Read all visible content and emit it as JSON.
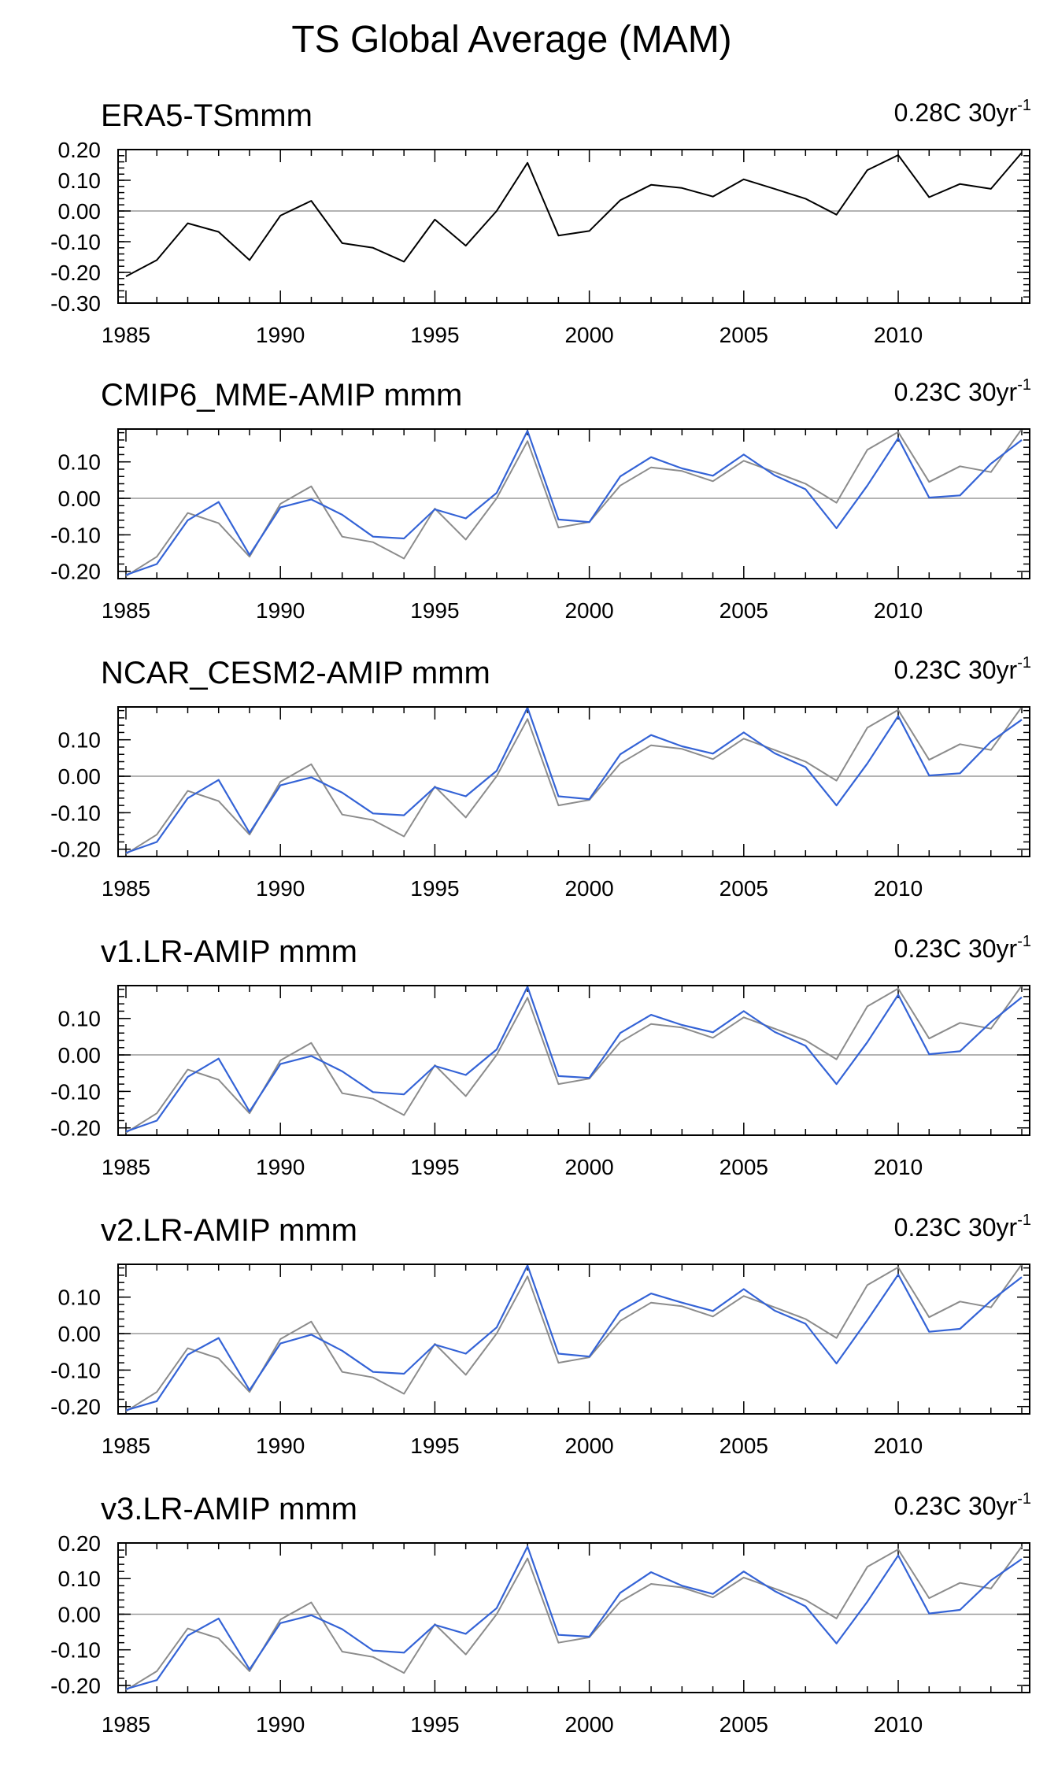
{
  "title": "TS Global Average (MAM)",
  "colors": {
    "observed": "#000000",
    "observed_reference": "#8c8c8c",
    "model": "#3463d6",
    "zero_line": "#9a9a9a"
  },
  "chart_data": [
    {
      "type": "line",
      "title": "ERA5-TSmmm",
      "trend_label": "0.28C 30yr",
      "trend_superscript": "-1",
      "xlabel": "",
      "ylabel": "",
      "xlim": [
        1985,
        2014
      ],
      "ylim": [
        -0.3,
        0.2
      ],
      "y_ticks": [
        0.2,
        0.1,
        0.0,
        -0.1,
        -0.2,
        -0.3
      ],
      "y_tick_labels": [
        "0.20",
        "0.10",
        "0.00",
        "-0.10",
        "-0.20",
        "-0.30"
      ],
      "x_ticks": [
        1985,
        1990,
        1995,
        2000,
        2005,
        2010
      ],
      "x_tick_labels": [
        "1985",
        "1990",
        "1995",
        "2000",
        "2005",
        "2010"
      ],
      "series": [
        {
          "name": "ERA5",
          "role": "observed",
          "x": [
            1985,
            1986,
            1987,
            1988,
            1989,
            1990,
            1991,
            1992,
            1993,
            1994,
            1995,
            1996,
            1997,
            1998,
            1999,
            2000,
            2001,
            2002,
            2003,
            2004,
            2005,
            2006,
            2007,
            2008,
            2009,
            2010,
            2011,
            2012,
            2013,
            2014
          ],
          "values": [
            -0.213,
            -0.16,
            -0.04,
            -0.068,
            -0.16,
            -0.015,
            0.033,
            -0.105,
            -0.12,
            -0.165,
            -0.028,
            -0.113,
            0.0,
            0.157,
            -0.08,
            -0.065,
            0.035,
            0.085,
            0.075,
            0.047,
            0.103,
            0.072,
            0.04,
            -0.012,
            0.133,
            0.182,
            0.045,
            0.088,
            0.072,
            0.19
          ]
        }
      ]
    },
    {
      "type": "line",
      "title": "CMIP6_MME-AMIP  mmm",
      "trend_label": "0.23C 30yr",
      "trend_superscript": "-1",
      "xlabel": "",
      "ylabel": "",
      "xlim": [
        1985,
        2014
      ],
      "ylim": [
        -0.22,
        0.19
      ],
      "y_ticks": [
        0.1,
        0.0,
        -0.1,
        -0.2
      ],
      "y_tick_labels": [
        "0.10",
        "0.00",
        "-0.10",
        "-0.20"
      ],
      "x_ticks": [
        1985,
        1990,
        1995,
        2000,
        2005,
        2010
      ],
      "x_tick_labels": [
        "1985",
        "1990",
        "1995",
        "2000",
        "2005",
        "2010"
      ],
      "series": [
        {
          "name": "ERA5",
          "role": "observed_reference",
          "x": [
            1985,
            1986,
            1987,
            1988,
            1989,
            1990,
            1991,
            1992,
            1993,
            1994,
            1995,
            1996,
            1997,
            1998,
            1999,
            2000,
            2001,
            2002,
            2003,
            2004,
            2005,
            2006,
            2007,
            2008,
            2009,
            2010,
            2011,
            2012,
            2013,
            2014
          ],
          "values": [
            -0.213,
            -0.16,
            -0.04,
            -0.068,
            -0.16,
            -0.015,
            0.033,
            -0.105,
            -0.12,
            -0.165,
            -0.028,
            -0.113,
            0.0,
            0.157,
            -0.08,
            -0.065,
            0.035,
            0.085,
            0.075,
            0.047,
            0.103,
            0.072,
            0.04,
            -0.012,
            0.133,
            0.182,
            0.045,
            0.088,
            0.072,
            0.19
          ]
        },
        {
          "name": "CMIP6_MME-AMIP",
          "role": "model",
          "x": [
            1985,
            1986,
            1987,
            1988,
            1989,
            1990,
            1991,
            1992,
            1993,
            1994,
            1995,
            1996,
            1997,
            1998,
            1999,
            2000,
            2001,
            2002,
            2003,
            2004,
            2005,
            2006,
            2007,
            2008,
            2009,
            2010,
            2011,
            2012,
            2013,
            2014
          ],
          "values": [
            -0.21,
            -0.18,
            -0.06,
            -0.01,
            -0.155,
            -0.025,
            -0.003,
            -0.045,
            -0.105,
            -0.11,
            -0.03,
            -0.055,
            0.015,
            0.185,
            -0.058,
            -0.065,
            0.06,
            0.113,
            0.082,
            0.062,
            0.12,
            0.063,
            0.025,
            -0.082,
            0.035,
            0.165,
            0.002,
            0.008,
            0.095,
            0.16
          ]
        }
      ]
    },
    {
      "type": "line",
      "title": "NCAR_CESM2-AMIP  mmm",
      "trend_label": "0.23C 30yr",
      "trend_superscript": "-1",
      "xlabel": "",
      "ylabel": "",
      "xlim": [
        1985,
        2014
      ],
      "ylim": [
        -0.22,
        0.19
      ],
      "y_ticks": [
        0.1,
        0.0,
        -0.1,
        -0.2
      ],
      "y_tick_labels": [
        "0.10",
        "0.00",
        "-0.10",
        "-0.20"
      ],
      "x_ticks": [
        1985,
        1990,
        1995,
        2000,
        2005,
        2010
      ],
      "x_tick_labels": [
        "1985",
        "1990",
        "1995",
        "2000",
        "2005",
        "2010"
      ],
      "series": [
        {
          "name": "ERA5",
          "role": "observed_reference",
          "x": [
            1985,
            1986,
            1987,
            1988,
            1989,
            1990,
            1991,
            1992,
            1993,
            1994,
            1995,
            1996,
            1997,
            1998,
            1999,
            2000,
            2001,
            2002,
            2003,
            2004,
            2005,
            2006,
            2007,
            2008,
            2009,
            2010,
            2011,
            2012,
            2013,
            2014
          ],
          "values": [
            -0.213,
            -0.16,
            -0.04,
            -0.068,
            -0.16,
            -0.015,
            0.033,
            -0.105,
            -0.12,
            -0.165,
            -0.028,
            -0.113,
            0.0,
            0.157,
            -0.08,
            -0.065,
            0.035,
            0.085,
            0.075,
            0.047,
            0.103,
            0.072,
            0.04,
            -0.012,
            0.133,
            0.182,
            0.045,
            0.088,
            0.072,
            0.19
          ]
        },
        {
          "name": "NCAR_CESM2-AMIP",
          "role": "model",
          "x": [
            1985,
            1986,
            1987,
            1988,
            1989,
            1990,
            1991,
            1992,
            1993,
            1994,
            1995,
            1996,
            1997,
            1998,
            1999,
            2000,
            2001,
            2002,
            2003,
            2004,
            2005,
            2006,
            2007,
            2008,
            2009,
            2010,
            2011,
            2012,
            2013,
            2014
          ],
          "values": [
            -0.21,
            -0.18,
            -0.06,
            -0.01,
            -0.155,
            -0.025,
            -0.003,
            -0.045,
            -0.102,
            -0.107,
            -0.03,
            -0.055,
            0.015,
            0.188,
            -0.055,
            -0.063,
            0.06,
            0.113,
            0.082,
            0.062,
            0.12,
            0.063,
            0.025,
            -0.08,
            0.035,
            0.165,
            0.002,
            0.008,
            0.095,
            0.155
          ]
        }
      ]
    },
    {
      "type": "line",
      "title": "v1.LR-AMIP  mmm",
      "trend_label": "0.23C 30yr",
      "trend_superscript": "-1",
      "xlabel": "",
      "ylabel": "",
      "xlim": [
        1985,
        2014
      ],
      "ylim": [
        -0.22,
        0.19
      ],
      "y_ticks": [
        0.1,
        0.0,
        -0.1,
        -0.2
      ],
      "y_tick_labels": [
        "0.10",
        "0.00",
        "-0.10",
        "-0.20"
      ],
      "x_ticks": [
        1985,
        1990,
        1995,
        2000,
        2005,
        2010
      ],
      "x_tick_labels": [
        "1985",
        "1990",
        "1995",
        "2000",
        "2005",
        "2010"
      ],
      "series": [
        {
          "name": "ERA5",
          "role": "observed_reference",
          "x": [
            1985,
            1986,
            1987,
            1988,
            1989,
            1990,
            1991,
            1992,
            1993,
            1994,
            1995,
            1996,
            1997,
            1998,
            1999,
            2000,
            2001,
            2002,
            2003,
            2004,
            2005,
            2006,
            2007,
            2008,
            2009,
            2010,
            2011,
            2012,
            2013,
            2014
          ],
          "values": [
            -0.213,
            -0.16,
            -0.04,
            -0.068,
            -0.16,
            -0.015,
            0.033,
            -0.105,
            -0.12,
            -0.165,
            -0.028,
            -0.113,
            0.0,
            0.157,
            -0.08,
            -0.065,
            0.035,
            0.085,
            0.075,
            0.047,
            0.103,
            0.072,
            0.04,
            -0.012,
            0.133,
            0.182,
            0.045,
            0.088,
            0.072,
            0.19
          ]
        },
        {
          "name": "v1.LR-AMIP",
          "role": "model",
          "x": [
            1985,
            1986,
            1987,
            1988,
            1989,
            1990,
            1991,
            1992,
            1993,
            1994,
            1995,
            1996,
            1997,
            1998,
            1999,
            2000,
            2001,
            2002,
            2003,
            2004,
            2005,
            2006,
            2007,
            2008,
            2009,
            2010,
            2011,
            2012,
            2013,
            2014
          ],
          "values": [
            -0.21,
            -0.18,
            -0.06,
            -0.01,
            -0.155,
            -0.025,
            -0.003,
            -0.045,
            -0.102,
            -0.108,
            -0.03,
            -0.055,
            0.015,
            0.187,
            -0.058,
            -0.063,
            0.06,
            0.11,
            0.082,
            0.062,
            0.12,
            0.063,
            0.025,
            -0.08,
            0.035,
            0.165,
            0.002,
            0.01,
            0.09,
            0.158
          ]
        }
      ]
    },
    {
      "type": "line",
      "title": "v2.LR-AMIP  mmm",
      "trend_label": "0.23C 30yr",
      "trend_superscript": "-1",
      "xlabel": "",
      "ylabel": "",
      "xlim": [
        1985,
        2014
      ],
      "ylim": [
        -0.22,
        0.19
      ],
      "y_ticks": [
        0.1,
        0.0,
        -0.1,
        -0.2
      ],
      "y_tick_labels": [
        "0.10",
        "0.00",
        "-0.10",
        "-0.20"
      ],
      "x_ticks": [
        1985,
        1990,
        1995,
        2000,
        2005,
        2010
      ],
      "x_tick_labels": [
        "1985",
        "1990",
        "1995",
        "2000",
        "2005",
        "2010"
      ],
      "series": [
        {
          "name": "ERA5",
          "role": "observed_reference",
          "x": [
            1985,
            1986,
            1987,
            1988,
            1989,
            1990,
            1991,
            1992,
            1993,
            1994,
            1995,
            1996,
            1997,
            1998,
            1999,
            2000,
            2001,
            2002,
            2003,
            2004,
            2005,
            2006,
            2007,
            2008,
            2009,
            2010,
            2011,
            2012,
            2013,
            2014
          ],
          "values": [
            -0.213,
            -0.16,
            -0.04,
            -0.068,
            -0.16,
            -0.015,
            0.033,
            -0.105,
            -0.12,
            -0.165,
            -0.028,
            -0.113,
            0.0,
            0.157,
            -0.08,
            -0.065,
            0.035,
            0.085,
            0.075,
            0.047,
            0.103,
            0.072,
            0.04,
            -0.012,
            0.133,
            0.182,
            0.045,
            0.088,
            0.072,
            0.19
          ]
        },
        {
          "name": "v2.LR-AMIP",
          "role": "model",
          "x": [
            1985,
            1986,
            1987,
            1988,
            1989,
            1990,
            1991,
            1992,
            1993,
            1994,
            1995,
            1996,
            1997,
            1998,
            1999,
            2000,
            2001,
            2002,
            2003,
            2004,
            2005,
            2006,
            2007,
            2008,
            2009,
            2010,
            2011,
            2012,
            2013,
            2014
          ],
          "values": [
            -0.21,
            -0.185,
            -0.058,
            -0.012,
            -0.155,
            -0.027,
            -0.003,
            -0.047,
            -0.105,
            -0.11,
            -0.03,
            -0.055,
            0.017,
            0.187,
            -0.055,
            -0.063,
            0.062,
            0.11,
            0.085,
            0.062,
            0.122,
            0.063,
            0.027,
            -0.082,
            0.037,
            0.162,
            0.005,
            0.013,
            0.09,
            0.155
          ]
        }
      ]
    },
    {
      "type": "line",
      "title": "v3.LR-AMIP  mmm",
      "trend_label": "0.23C 30yr",
      "trend_superscript": "-1",
      "xlabel": "",
      "ylabel": "",
      "xlim": [
        1985,
        2014
      ],
      "ylim": [
        -0.22,
        0.2
      ],
      "y_ticks": [
        0.2,
        0.1,
        0.0,
        -0.1,
        -0.2
      ],
      "y_tick_labels": [
        "0.20",
        "0.10",
        "0.00",
        "-0.10",
        "-0.20"
      ],
      "x_ticks": [
        1985,
        1990,
        1995,
        2000,
        2005,
        2010
      ],
      "x_tick_labels": [
        "1985",
        "1990",
        "1995",
        "2000",
        "2005",
        "2010"
      ],
      "series": [
        {
          "name": "ERA5",
          "role": "observed_reference",
          "x": [
            1985,
            1986,
            1987,
            1988,
            1989,
            1990,
            1991,
            1992,
            1993,
            1994,
            1995,
            1996,
            1997,
            1998,
            1999,
            2000,
            2001,
            2002,
            2003,
            2004,
            2005,
            2006,
            2007,
            2008,
            2009,
            2010,
            2011,
            2012,
            2013,
            2014
          ],
          "values": [
            -0.213,
            -0.16,
            -0.04,
            -0.068,
            -0.16,
            -0.015,
            0.033,
            -0.105,
            -0.12,
            -0.165,
            -0.028,
            -0.113,
            0.0,
            0.157,
            -0.08,
            -0.065,
            0.035,
            0.085,
            0.075,
            0.047,
            0.103,
            0.072,
            0.04,
            -0.012,
            0.133,
            0.182,
            0.045,
            0.088,
            0.072,
            0.19
          ]
        },
        {
          "name": "v3.LR-AMIP",
          "role": "model",
          "x": [
            1985,
            1986,
            1987,
            1988,
            1989,
            1990,
            1991,
            1992,
            1993,
            1994,
            1995,
            1996,
            1997,
            1998,
            1999,
            2000,
            2001,
            2002,
            2003,
            2004,
            2005,
            2006,
            2007,
            2008,
            2009,
            2010,
            2011,
            2012,
            2013,
            2014
          ],
          "values": [
            -0.21,
            -0.185,
            -0.06,
            -0.012,
            -0.155,
            -0.025,
            -0.003,
            -0.042,
            -0.102,
            -0.108,
            -0.03,
            -0.055,
            0.017,
            0.19,
            -0.058,
            -0.063,
            0.06,
            0.118,
            0.08,
            0.057,
            0.12,
            0.065,
            0.022,
            -0.082,
            0.035,
            0.165,
            0.002,
            0.012,
            0.095,
            0.155
          ]
        }
      ]
    }
  ]
}
